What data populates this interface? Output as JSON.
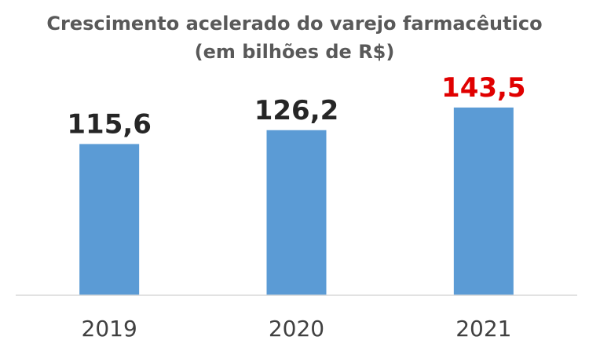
{
  "chart_data": {
    "type": "bar",
    "title": "Crescimento acelerado do varejo farmacêutico",
    "subtitle": "(em bilhões de R$)",
    "categories": [
      "2019",
      "2020",
      "2021"
    ],
    "values": [
      115.6,
      126.2,
      143.5
    ],
    "value_labels": [
      "115,6",
      "126,2",
      "143,5"
    ],
    "xlabel": "",
    "ylabel": "",
    "ylim": [
      0,
      160
    ],
    "grid": false,
    "legend": "none",
    "colors": {
      "bar": "#5b9bd5",
      "label_default": "#262626",
      "label_highlight": "#e00000",
      "axis": "#d9d9d9"
    },
    "highlight_index": 2
  }
}
